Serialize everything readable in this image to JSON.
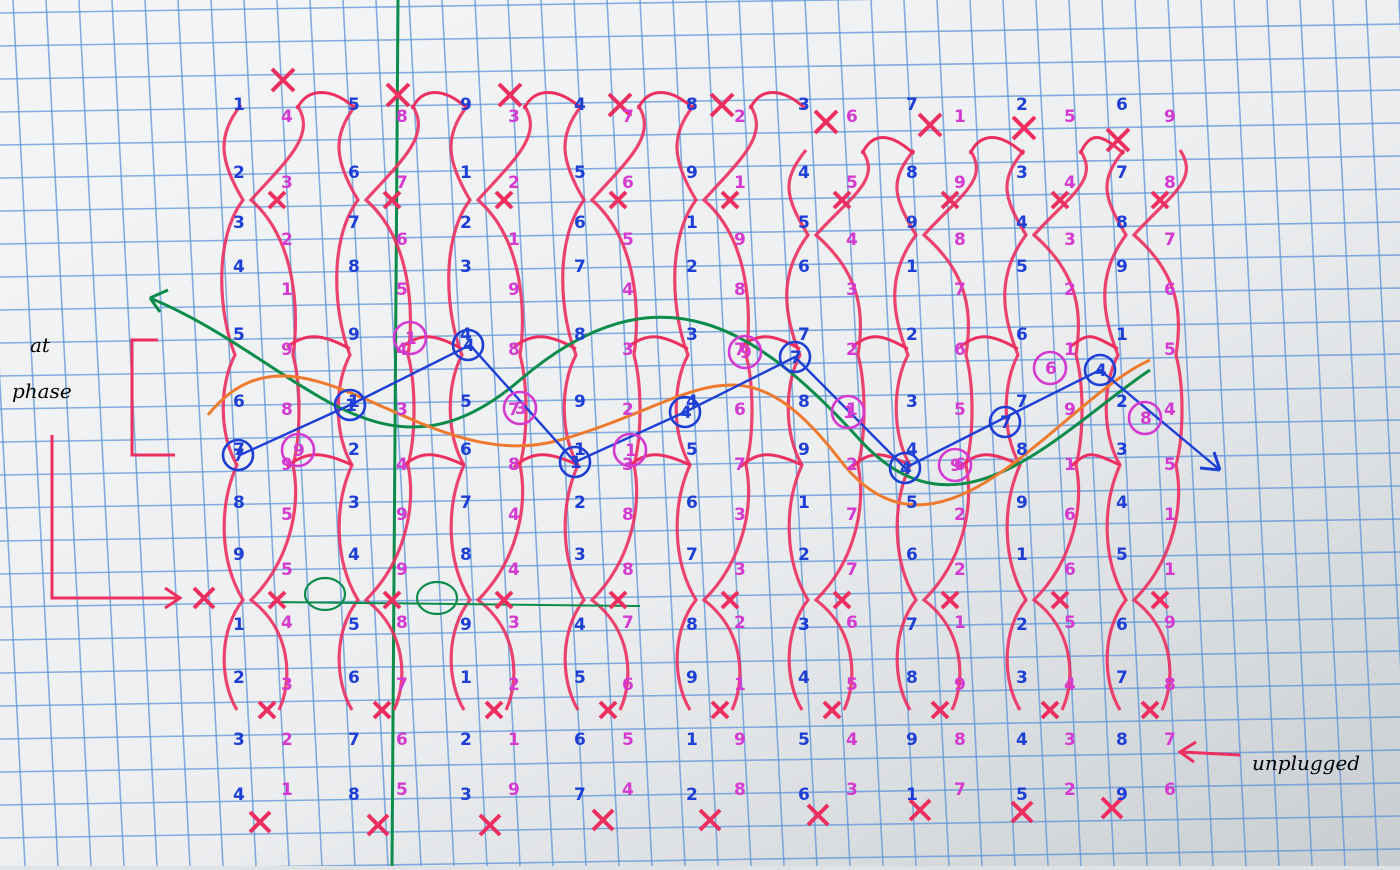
{
  "ink": {
    "blue": "#1d3fd6",
    "magenta": "#d43ad0",
    "red": "#ec2f5f",
    "green": "#0c8c4a",
    "orange": "#ee7a2e",
    "grid": "#5b95d8",
    "paper": "#eef0f2"
  },
  "annotations": {
    "phase_top": "at",
    "phase_bottom": "phase",
    "unplugged": "unplugged"
  },
  "digit_rows": [
    {
      "color": "blue",
      "digits": [
        "1",
        "5",
        "9",
        "4",
        "8",
        "3",
        "7",
        "2",
        "6"
      ]
    },
    {
      "color": "magenta",
      "digits": [
        "4",
        "8",
        "3",
        "7",
        "2",
        "6",
        "1",
        "5",
        "9"
      ]
    },
    {
      "color": "blue",
      "digits": [
        "2",
        "6",
        "1",
        "5",
        "9",
        "4",
        "8",
        "3",
        "7"
      ]
    },
    {
      "color": "magenta",
      "digits": [
        "3",
        "7",
        "2",
        "6",
        "1",
        "5",
        "9",
        "4",
        "8"
      ]
    },
    {
      "color": "blue",
      "digits": [
        "3",
        "7",
        "2",
        "6",
        "1",
        "5",
        "9",
        "4",
        "8"
      ]
    },
    {
      "color": "magenta",
      "digits": [
        "2",
        "6",
        "1",
        "5",
        "9",
        "4",
        "8",
        "3",
        "7"
      ]
    },
    {
      "color": "blue",
      "digits": [
        "4",
        "8",
        "3",
        "7",
        "2",
        "6",
        "1",
        "5",
        "9"
      ]
    },
    {
      "color": "magenta",
      "digits": [
        "1",
        "5",
        "9",
        "4",
        "8",
        "3",
        "7",
        "2",
        "6"
      ]
    },
    {
      "color": "blue",
      "digits": [
        "5",
        "9",
        "4",
        "8",
        "3",
        "7",
        "2",
        "6",
        "1"
      ]
    },
    {
      "color": "magenta",
      "digits": [
        "9",
        "4",
        "8",
        "3",
        "7",
        "2",
        "6",
        "1",
        "5"
      ]
    },
    {
      "color": "blue",
      "digits": [
        "6",
        "1",
        "5",
        "9",
        "4",
        "8",
        "3",
        "7",
        "2"
      ]
    },
    {
      "color": "magenta",
      "digits": [
        "8",
        "3",
        "7",
        "2",
        "6",
        "1",
        "5",
        "9",
        "4"
      ]
    },
    {
      "color": "blue",
      "digits": [
        "7",
        "2",
        "6",
        "1",
        "5",
        "9",
        "4",
        "8",
        "3"
      ]
    },
    {
      "color": "magenta",
      "digits": [
        "9",
        "4",
        "8",
        "3",
        "7",
        "2",
        "6",
        "1",
        "5"
      ]
    },
    {
      "color": "blue",
      "digits": [
        "8",
        "3",
        "7",
        "2",
        "6",
        "1",
        "5",
        "9",
        "4"
      ]
    },
    {
      "color": "magenta",
      "digits": [
        "5",
        "9",
        "4",
        "8",
        "3",
        "7",
        "2",
        "6",
        "1"
      ]
    },
    {
      "color": "blue",
      "digits": [
        "9",
        "4",
        "8",
        "3",
        "7",
        "2",
        "6",
        "1",
        "5"
      ]
    },
    {
      "color": "magenta",
      "digits": [
        "5",
        "9",
        "4",
        "8",
        "3",
        "7",
        "2",
        "6",
        "1"
      ]
    },
    {
      "color": "blue",
      "digits": [
        "1",
        "5",
        "9",
        "4",
        "8",
        "3",
        "7",
        "2",
        "6"
      ]
    },
    {
      "color": "magenta",
      "digits": [
        "4",
        "8",
        "3",
        "7",
        "2",
        "6",
        "1",
        "5",
        "9"
      ]
    },
    {
      "color": "blue",
      "digits": [
        "2",
        "6",
        "1",
        "5",
        "9",
        "4",
        "8",
        "3",
        "7"
      ]
    },
    {
      "color": "magenta",
      "digits": [
        "3",
        "7",
        "2",
        "6",
        "1",
        "5",
        "9",
        "4",
        "8"
      ]
    },
    {
      "color": "blue",
      "digits": [
        "3",
        "7",
        "2",
        "6",
        "1",
        "5",
        "9",
        "4",
        "8"
      ]
    },
    {
      "color": "magenta",
      "digits": [
        "2",
        "6",
        "1",
        "5",
        "9",
        "4",
        "8",
        "3",
        "7"
      ]
    },
    {
      "color": "blue",
      "digits": [
        "4",
        "8",
        "3",
        "7",
        "2",
        "6",
        "1",
        "5",
        "9"
      ]
    },
    {
      "color": "magenta",
      "digits": [
        "1",
        "5",
        "9",
        "4",
        "8",
        "3",
        "7",
        "2",
        "6"
      ]
    }
  ],
  "circled_blue": [
    "7",
    "1",
    "4",
    "1",
    "4",
    "7",
    "4",
    "7",
    "4"
  ],
  "circled_magenta": [
    "9",
    "1",
    "3",
    "1",
    "9",
    "1",
    "9",
    "6",
    "8"
  ]
}
